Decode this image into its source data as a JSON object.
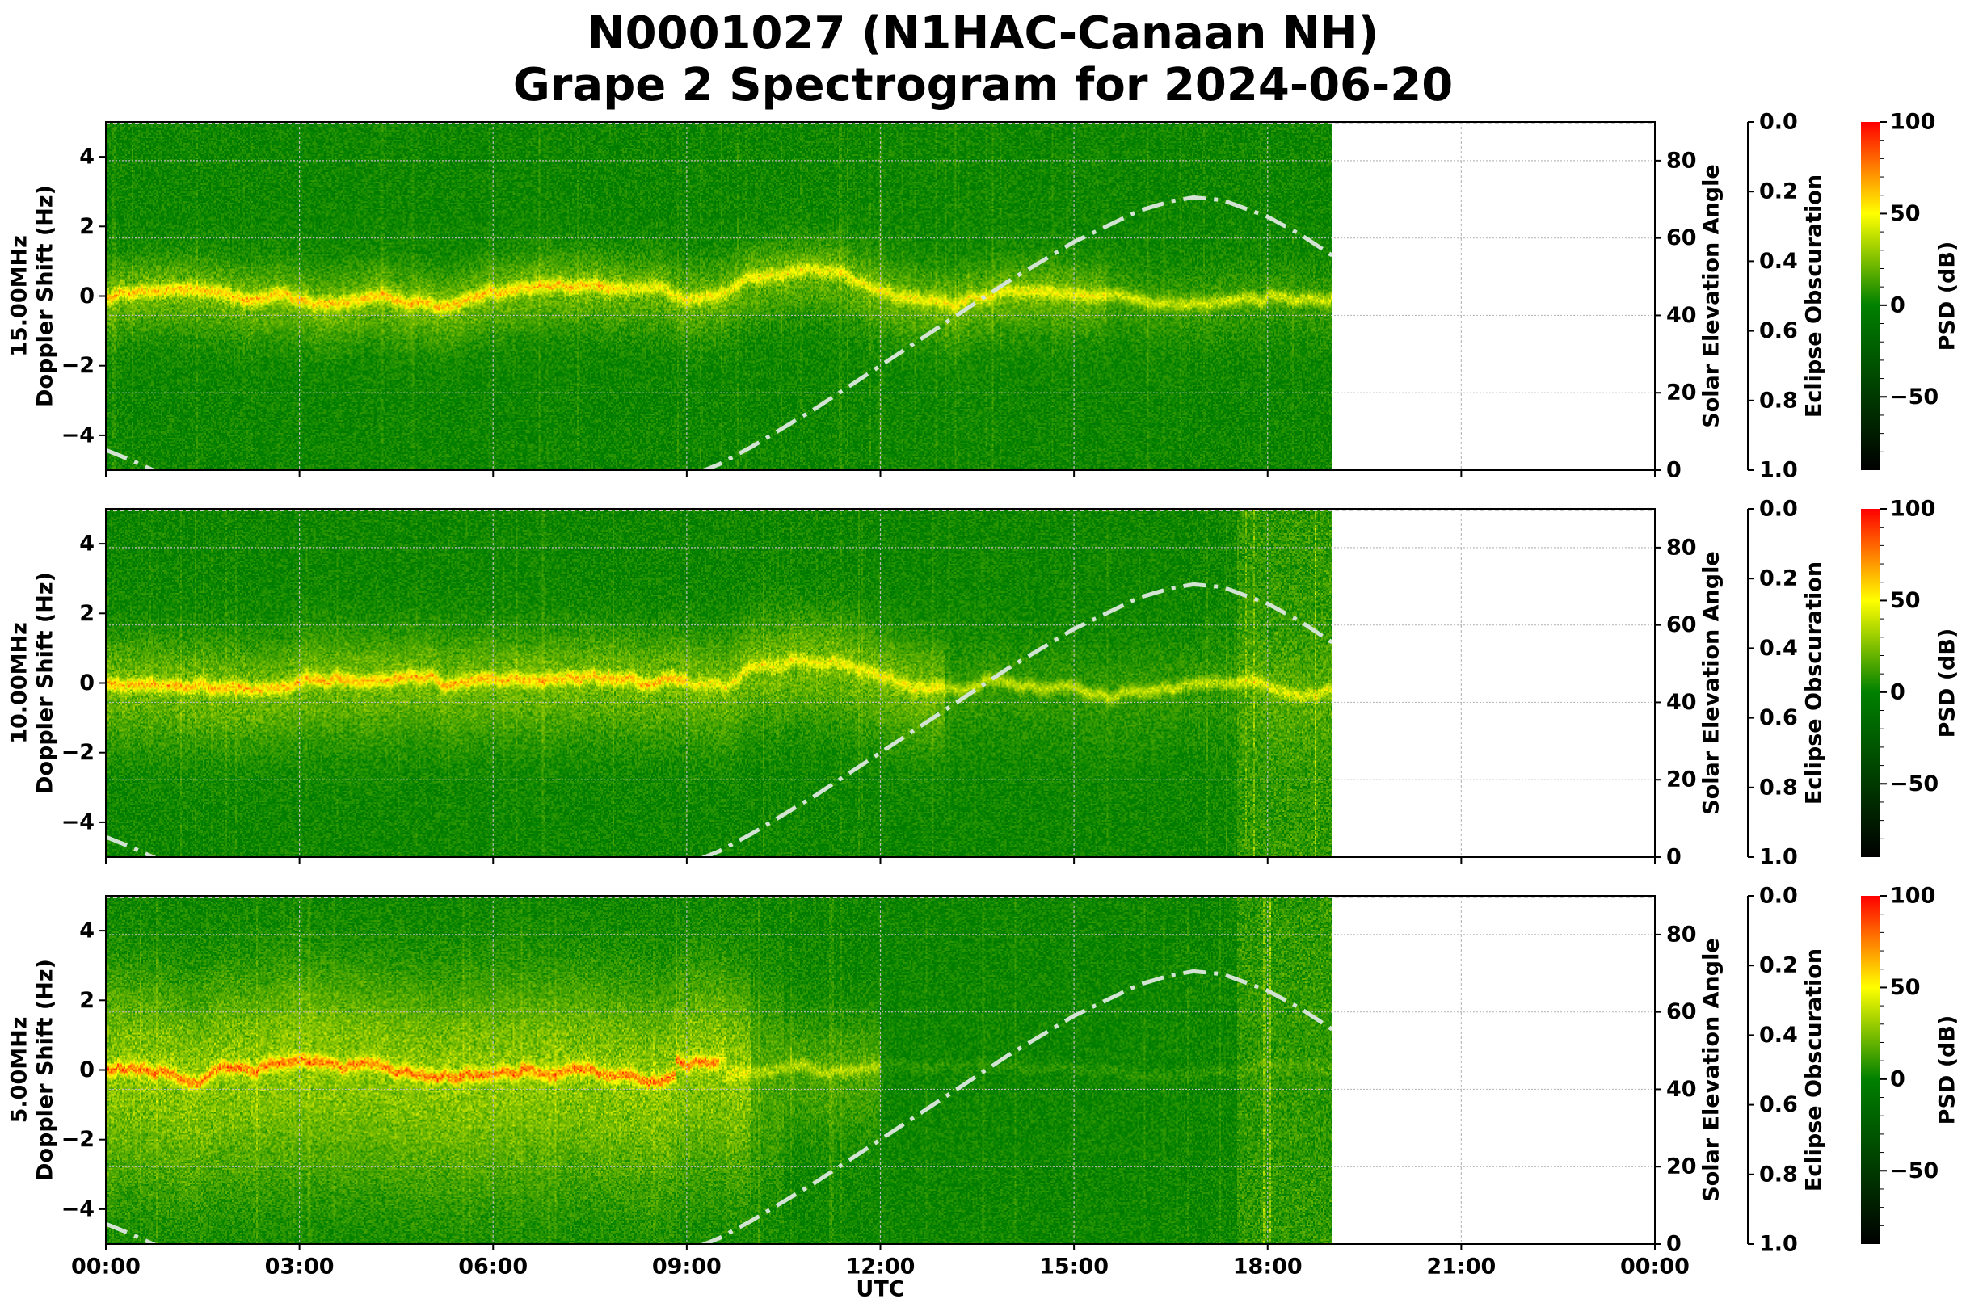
{
  "title": {
    "line1": "N0001027 (N1HAC-Canaan NH)",
    "line2": "Grape 2 Spectrogram for 2024-06-20"
  },
  "colors": {
    "background_green": "#007a00",
    "elevation_line": "#d3e3d3",
    "grid": "#bbbbbb"
  },
  "chart_data": {
    "type": "heatmap",
    "xlabel": "UTC",
    "x_ticks": [
      "00:00",
      "03:00",
      "06:00",
      "09:00",
      "12:00",
      "15:00",
      "18:00",
      "21:00",
      "00:00"
    ],
    "x_range_hours": [
      0,
      24
    ],
    "data_end_hour": 19,
    "grid": true,
    "panels": [
      {
        "frequency_label": "15.00MHz",
        "ylabel": "Doppler Shift (Hz)",
        "ylim": [
          -5,
          5
        ],
        "y_ticks": [
          "4",
          "2",
          "0",
          "−2",
          "−4"
        ],
        "y_tick_values": [
          4,
          2,
          0,
          -2,
          -4
        ]
      },
      {
        "frequency_label": "10.00MHz",
        "ylabel": "Doppler Shift (Hz)",
        "ylim": [
          -5,
          5
        ],
        "y_ticks": [
          "4",
          "2",
          "0",
          "−2",
          "−4"
        ],
        "y_tick_values": [
          4,
          2,
          0,
          -2,
          -4
        ]
      },
      {
        "frequency_label": "5.00MHz",
        "ylabel": "Doppler Shift (Hz)",
        "ylim": [
          -5,
          5
        ],
        "y_ticks": [
          "4",
          "2",
          "0",
          "−2",
          "−4"
        ],
        "y_tick_values": [
          4,
          2,
          0,
          -2,
          -4
        ]
      }
    ],
    "solar_elevation": {
      "label": "Solar Elevation Angle",
      "ylim": [
        0,
        90
      ],
      "ticks": [
        "0",
        "20",
        "40",
        "60",
        "80"
      ],
      "tick_values": [
        0,
        20,
        40,
        60,
        80
      ],
      "hours": [
        0,
        0.3,
        0.6,
        0.8,
        9.2,
        9.5,
        10,
        11,
        12,
        13,
        14,
        15,
        16,
        16.5,
        16.85,
        17.3,
        18,
        18.5,
        19
      ],
      "degrees": [
        5.2,
        3.2,
        1.0,
        -0.5,
        -0.5,
        1.5,
        6,
        16,
        27,
        38,
        49,
        59,
        67,
        69.5,
        70.5,
        69.8,
        65.5,
        61,
        55.5
      ]
    },
    "eclipse_obscuration": {
      "label": "Eclipse Obscuration",
      "ylim": [
        1.0,
        0.0
      ],
      "ticks": [
        "0.0",
        "0.2",
        "0.4",
        "0.6",
        "0.8",
        "1.0"
      ],
      "tick_values": [
        0,
        0.2,
        0.4,
        0.6,
        0.8,
        1.0
      ]
    },
    "colorbar": {
      "label": "PSD (dB)",
      "range": [
        -90,
        100
      ],
      "ticks": [
        "100",
        "50",
        "0",
        "−50"
      ],
      "tick_values": [
        100,
        50,
        0,
        -50
      ],
      "stops": [
        {
          "value": -90,
          "color": "#000000"
        },
        {
          "value": 0,
          "color": "#008000"
        },
        {
          "value": 50,
          "color": "#ffff00"
        },
        {
          "value": 100,
          "color": "#ff0000"
        }
      ]
    }
  }
}
